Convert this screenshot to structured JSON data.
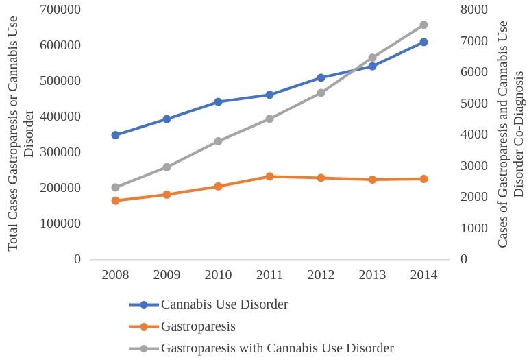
{
  "chart_data": {
    "type": "line",
    "title": "",
    "categories": [
      "2008",
      "2009",
      "2010",
      "2011",
      "2012",
      "2013",
      "2014"
    ],
    "left_axis": {
      "title": "Total Cases Gastroparesis or Cannabis Use Disorder",
      "title_line1": "Total Cases Gastroparesis or Cannabis Use",
      "title_line2": "Disorder",
      "min": 0,
      "max": 700000,
      "step": 100000,
      "tick_labels": [
        "0",
        "100000",
        "200000",
        "300000",
        "400000",
        "500000",
        "600000",
        "700000"
      ]
    },
    "right_axis": {
      "title": "Cases of Gastroparesis and Cannabis Use Disorder Co-Diagnosis",
      "title_line1": "Cases of Gastroparesis and Cannabis Use",
      "title_line2": "Disorder Co-Diagnosis",
      "min": 0,
      "max": 8000,
      "step": 1000,
      "tick_labels": [
        "0",
        "1000",
        "2000",
        "3000",
        "4000",
        "5000",
        "6000",
        "7000",
        "8000"
      ]
    },
    "series": [
      {
        "name": "Cannabis Use Disorder",
        "axis": "left",
        "color": "#4472C4",
        "marker": "circle",
        "values": [
          348000,
          393000,
          441000,
          461000,
          509000,
          541000,
          609000
        ]
      },
      {
        "name": "Gastroparesis",
        "axis": "left",
        "color": "#ED7D31",
        "marker": "circle",
        "values": [
          164000,
          181000,
          204000,
          232000,
          228000,
          223000,
          225000
        ]
      },
      {
        "name": "Gastroparesis with Cannabis Use Disorder",
        "axis": "right",
        "color": "#A5A5A5",
        "marker": "circle",
        "values": [
          2300,
          2950,
          3780,
          4500,
          5330,
          6460,
          7510
        ]
      }
    ],
    "legend_position": "bottom-left",
    "grid": false,
    "axis_line_color": "#D9D9D9",
    "text_color": "#3F3F3F",
    "background_color": "#FFFFFF"
  }
}
